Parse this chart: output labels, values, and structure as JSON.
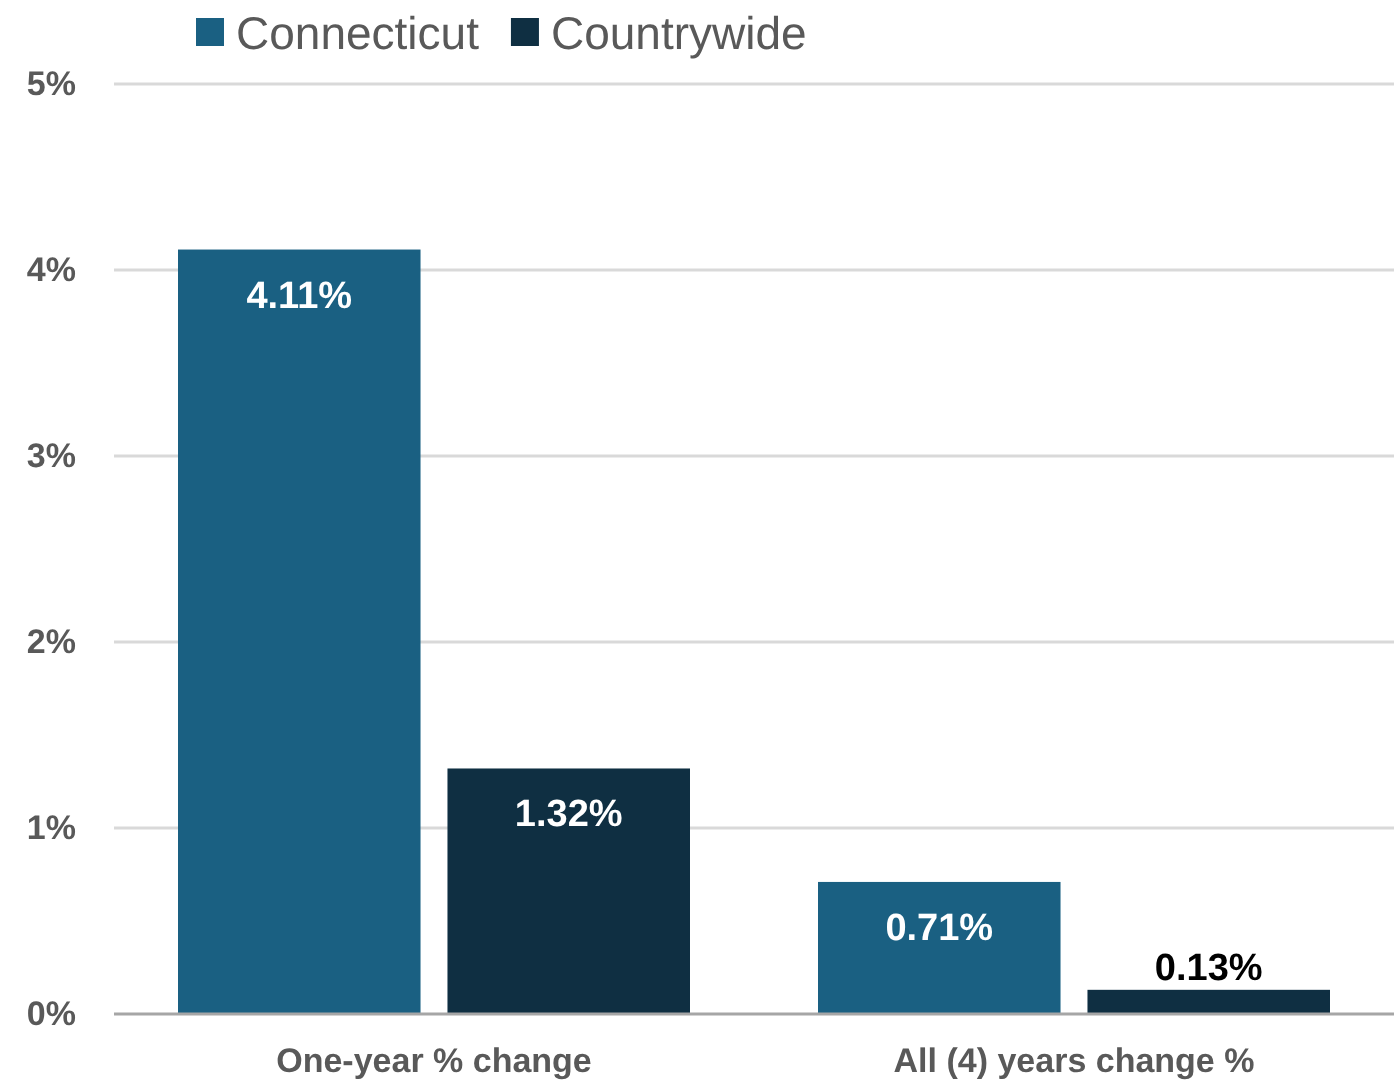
{
  "chart_data": {
    "type": "bar",
    "categories": [
      "One-year % change",
      "All (4) years change %"
    ],
    "series": [
      {
        "name": "Connecticut",
        "color": "#1a6082",
        "values": [
          4.11,
          0.71
        ],
        "value_labels": [
          "4.11%",
          "0.71%"
        ]
      },
      {
        "name": "Countrywide",
        "color": "#0f2f42",
        "values": [
          1.32,
          0.13
        ],
        "value_labels": [
          "1.32%",
          "0.13%"
        ]
      }
    ],
    "ylim": [
      0,
      5
    ],
    "yticks": [
      {
        "value": 0,
        "label": "0%"
      },
      {
        "value": 1,
        "label": "1%"
      },
      {
        "value": 2,
        "label": "2%"
      },
      {
        "value": 3,
        "label": "3%"
      },
      {
        "value": 4,
        "label": "4%"
      },
      {
        "value": 5,
        "label": "5%"
      }
    ],
    "grid": "y",
    "legend": "top"
  }
}
